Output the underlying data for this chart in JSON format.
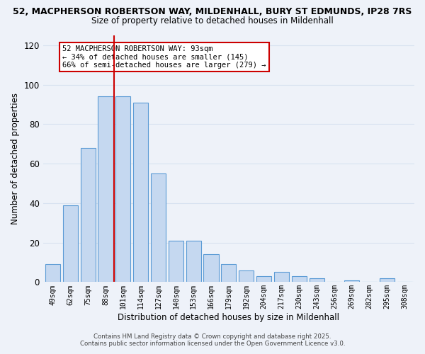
{
  "title_line1": "52, MACPHERSON ROBERTSON WAY, MILDENHALL, BURY ST EDMUNDS, IP28 7RS",
  "title_line2": "Size of property relative to detached houses in Mildenhall",
  "xlabel": "Distribution of detached houses by size in Mildenhall",
  "ylabel": "Number of detached properties",
  "bar_labels": [
    "49sqm",
    "62sqm",
    "75sqm",
    "88sqm",
    "101sqm",
    "114sqm",
    "127sqm",
    "140sqm",
    "153sqm",
    "166sqm",
    "179sqm",
    "192sqm",
    "204sqm",
    "217sqm",
    "230sqm",
    "243sqm",
    "256sqm",
    "269sqm",
    "282sqm",
    "295sqm",
    "308sqm"
  ],
  "bar_values": [
    9,
    39,
    68,
    94,
    94,
    91,
    55,
    21,
    21,
    14,
    9,
    6,
    3,
    5,
    3,
    2,
    0,
    1,
    0,
    2,
    0
  ],
  "bar_color": "#c5d8f0",
  "bar_edge_color": "#5b9bd5",
  "vline_x": 3.5,
  "vline_color": "#cc0000",
  "ylim": [
    0,
    125
  ],
  "yticks": [
    0,
    20,
    40,
    60,
    80,
    100,
    120
  ],
  "annotation_title": "52 MACPHERSON ROBERTSON WAY: 93sqm",
  "annotation_line2": "← 34% of detached houses are smaller (145)",
  "annotation_line3": "66% of semi-detached houses are larger (279) →",
  "annotation_box_color": "#ffffff",
  "annotation_box_edge": "#cc0000",
  "footer_line1": "Contains HM Land Registry data © Crown copyright and database right 2025.",
  "footer_line2": "Contains public sector information licensed under the Open Government Licence v3.0.",
  "background_color": "#eef2f9",
  "grid_color": "#d8e2f0",
  "plot_bg_color": "#e8eef8"
}
